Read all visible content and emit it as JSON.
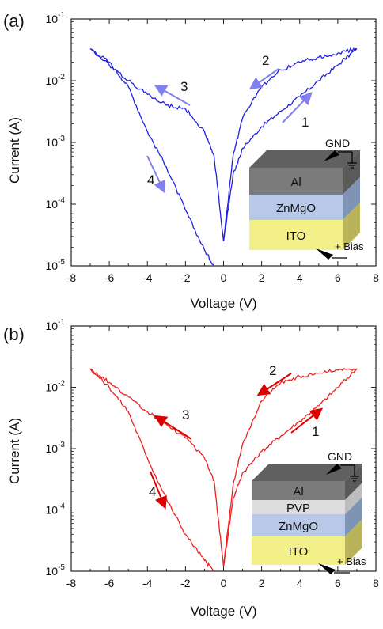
{
  "chart_data": [
    {
      "panel_label": "(a)",
      "type": "line",
      "xlabel": "Voltage (V)",
      "ylabel": "Current (A)",
      "xlim": [
        -8,
        8
      ],
      "ylim_log10": [
        -5,
        -1
      ],
      "y_scale": "log",
      "x_ticks": [
        "-8",
        "-6",
        "-4",
        "-2",
        "0",
        "2",
        "4",
        "6",
        "8"
      ],
      "y_ticks": [
        {
          "base": "10",
          "exp": "-5"
        },
        {
          "base": "10",
          "exp": "-4"
        },
        {
          "base": "10",
          "exp": "-3"
        },
        {
          "base": "10",
          "exp": "-2"
        },
        {
          "base": "10",
          "exp": "-1"
        }
      ],
      "grid": false,
      "line_color": "#2020e0",
      "arrow_color": "#8080ee",
      "sweep_labels": [
        "1",
        "2",
        "3",
        "4"
      ],
      "device_layers": [
        "Al",
        "ZnMgO",
        "ITO"
      ],
      "gnd_label": "GND",
      "bias_label": "+ Bias",
      "series": [
        {
          "sweep": "1",
          "x": [
            0,
            0.5,
            1,
            2,
            3,
            4,
            5,
            6,
            7
          ],
          "y": [
            2.5e-05,
            0.0003,
            0.0008,
            0.0018,
            0.0032,
            0.0055,
            0.01,
            0.018,
            0.033
          ]
        },
        {
          "sweep": "2",
          "x": [
            7,
            6,
            5,
            4,
            3,
            2,
            1,
            0.5,
            0
          ],
          "y": [
            0.033,
            0.028,
            0.024,
            0.02,
            0.015,
            0.008,
            0.0025,
            0.0006,
            2.5e-05
          ]
        },
        {
          "sweep": "3",
          "x": [
            0,
            -0.5,
            -1,
            -2,
            -3,
            -4,
            -5,
            -6,
            -7
          ],
          "y": [
            2.5e-05,
            0.0006,
            0.0015,
            0.0035,
            0.004,
            0.006,
            0.01,
            0.018,
            0.033
          ]
        },
        {
          "sweep": "4",
          "x": [
            -7,
            -6,
            -5,
            -4,
            -3,
            -2,
            -1,
            -0.5
          ],
          "y": [
            0.033,
            0.02,
            0.008,
            0.0015,
            0.0004,
            8e-05,
            1.8e-05,
            1e-05
          ]
        }
      ]
    },
    {
      "panel_label": "(b)",
      "type": "line",
      "xlabel": "Voltage (V)",
      "ylabel": "Current (A)",
      "xlim": [
        -8,
        8
      ],
      "ylim_log10": [
        -5,
        -1
      ],
      "y_scale": "log",
      "x_ticks": [
        "-8",
        "-6",
        "-4",
        "-2",
        "0",
        "2",
        "4",
        "6",
        "8"
      ],
      "y_ticks": [
        {
          "base": "10",
          "exp": "-5"
        },
        {
          "base": "10",
          "exp": "-4"
        },
        {
          "base": "10",
          "exp": "-3"
        },
        {
          "base": "10",
          "exp": "-2"
        },
        {
          "base": "10",
          "exp": "-1"
        }
      ],
      "grid": false,
      "line_color": "#ee2020",
      "arrow_color": "#dd0000",
      "sweep_labels": [
        "1",
        "2",
        "3",
        "4"
      ],
      "device_layers": [
        "Al",
        "PVP",
        "ZnMgO",
        "ITO"
      ],
      "gnd_label": "GND",
      "bias_label": "+ Bias",
      "series": [
        {
          "sweep": "1",
          "x": [
            0,
            0.5,
            1,
            2,
            3,
            4,
            5,
            6,
            7
          ],
          "y": [
            1.2e-05,
            0.00015,
            0.0004,
            0.0009,
            0.0016,
            0.0028,
            0.005,
            0.01,
            0.02
          ]
        },
        {
          "sweep": "2",
          "x": [
            7,
            6,
            5,
            4,
            3,
            2,
            1,
            0.5,
            0
          ],
          "y": [
            0.02,
            0.019,
            0.017,
            0.015,
            0.012,
            0.006,
            0.0012,
            0.00025,
            1.2e-05
          ]
        },
        {
          "sweep": "3",
          "x": [
            0,
            -0.5,
            -1,
            -2,
            -3,
            -4,
            -5,
            -6,
            -7
          ],
          "y": [
            1.2e-05,
            0.0003,
            0.0007,
            0.0015,
            0.0025,
            0.004,
            0.007,
            0.012,
            0.02
          ]
        },
        {
          "sweep": "4",
          "x": [
            -7,
            -6,
            -5,
            -4,
            -3,
            -2,
            -1,
            -0.5
          ],
          "y": [
            0.02,
            0.01,
            0.004,
            0.0007,
            0.00015,
            4e-05,
            1.5e-05,
            1e-05
          ]
        }
      ]
    }
  ]
}
